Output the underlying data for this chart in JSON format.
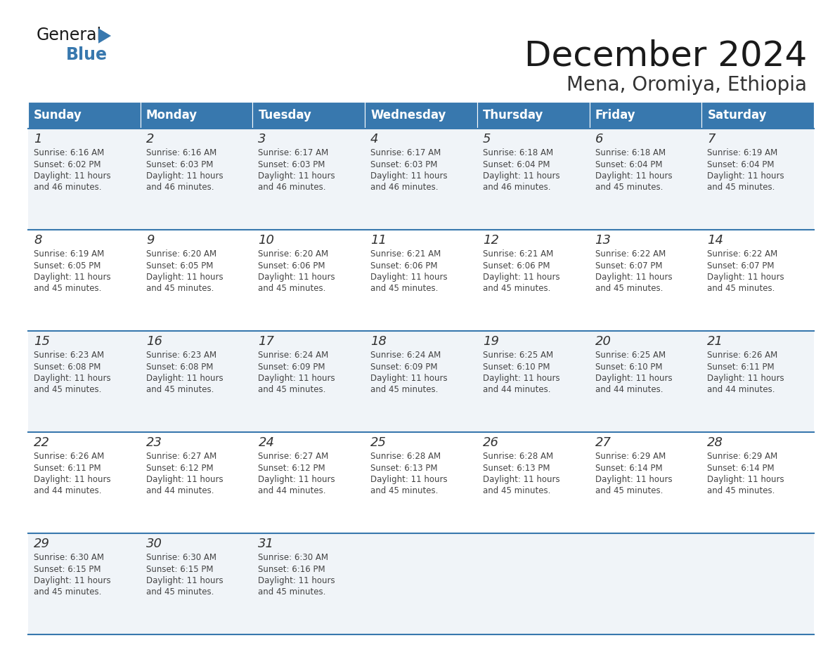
{
  "title": "December 2024",
  "subtitle": "Mena, Oromiya, Ethiopia",
  "header_color": "#3878ae",
  "header_text_color": "#FFFFFF",
  "day_names": [
    "Sunday",
    "Monday",
    "Tuesday",
    "Wednesday",
    "Thursday",
    "Friday",
    "Saturday"
  ],
  "bg_color": "#FFFFFF",
  "cell_bg_even": "#F0F4F8",
  "cell_bg_odd": "#FFFFFF",
  "row_line_color": "#3878ae",
  "days": [
    {
      "day": 1,
      "col": 0,
      "row": 0,
      "sunrise": "6:16 AM",
      "sunset": "6:02 PM",
      "daylight": "11 hours and 46 minutes."
    },
    {
      "day": 2,
      "col": 1,
      "row": 0,
      "sunrise": "6:16 AM",
      "sunset": "6:03 PM",
      "daylight": "11 hours and 46 minutes."
    },
    {
      "day": 3,
      "col": 2,
      "row": 0,
      "sunrise": "6:17 AM",
      "sunset": "6:03 PM",
      "daylight": "11 hours and 46 minutes."
    },
    {
      "day": 4,
      "col": 3,
      "row": 0,
      "sunrise": "6:17 AM",
      "sunset": "6:03 PM",
      "daylight": "11 hours and 46 minutes."
    },
    {
      "day": 5,
      "col": 4,
      "row": 0,
      "sunrise": "6:18 AM",
      "sunset": "6:04 PM",
      "daylight": "11 hours and 46 minutes."
    },
    {
      "day": 6,
      "col": 5,
      "row": 0,
      "sunrise": "6:18 AM",
      "sunset": "6:04 PM",
      "daylight": "11 hours and 45 minutes."
    },
    {
      "day": 7,
      "col": 6,
      "row": 0,
      "sunrise": "6:19 AM",
      "sunset": "6:04 PM",
      "daylight": "11 hours and 45 minutes."
    },
    {
      "day": 8,
      "col": 0,
      "row": 1,
      "sunrise": "6:19 AM",
      "sunset": "6:05 PM",
      "daylight": "11 hours and 45 minutes."
    },
    {
      "day": 9,
      "col": 1,
      "row": 1,
      "sunrise": "6:20 AM",
      "sunset": "6:05 PM",
      "daylight": "11 hours and 45 minutes."
    },
    {
      "day": 10,
      "col": 2,
      "row": 1,
      "sunrise": "6:20 AM",
      "sunset": "6:06 PM",
      "daylight": "11 hours and 45 minutes."
    },
    {
      "day": 11,
      "col": 3,
      "row": 1,
      "sunrise": "6:21 AM",
      "sunset": "6:06 PM",
      "daylight": "11 hours and 45 minutes."
    },
    {
      "day": 12,
      "col": 4,
      "row": 1,
      "sunrise": "6:21 AM",
      "sunset": "6:06 PM",
      "daylight": "11 hours and 45 minutes."
    },
    {
      "day": 13,
      "col": 5,
      "row": 1,
      "sunrise": "6:22 AM",
      "sunset": "6:07 PM",
      "daylight": "11 hours and 45 minutes."
    },
    {
      "day": 14,
      "col": 6,
      "row": 1,
      "sunrise": "6:22 AM",
      "sunset": "6:07 PM",
      "daylight": "11 hours and 45 minutes."
    },
    {
      "day": 15,
      "col": 0,
      "row": 2,
      "sunrise": "6:23 AM",
      "sunset": "6:08 PM",
      "daylight": "11 hours and 45 minutes."
    },
    {
      "day": 16,
      "col": 1,
      "row": 2,
      "sunrise": "6:23 AM",
      "sunset": "6:08 PM",
      "daylight": "11 hours and 45 minutes."
    },
    {
      "day": 17,
      "col": 2,
      "row": 2,
      "sunrise": "6:24 AM",
      "sunset": "6:09 PM",
      "daylight": "11 hours and 45 minutes."
    },
    {
      "day": 18,
      "col": 3,
      "row": 2,
      "sunrise": "6:24 AM",
      "sunset": "6:09 PM",
      "daylight": "11 hours and 45 minutes."
    },
    {
      "day": 19,
      "col": 4,
      "row": 2,
      "sunrise": "6:25 AM",
      "sunset": "6:10 PM",
      "daylight": "11 hours and 44 minutes."
    },
    {
      "day": 20,
      "col": 5,
      "row": 2,
      "sunrise": "6:25 AM",
      "sunset": "6:10 PM",
      "daylight": "11 hours and 44 minutes."
    },
    {
      "day": 21,
      "col": 6,
      "row": 2,
      "sunrise": "6:26 AM",
      "sunset": "6:11 PM",
      "daylight": "11 hours and 44 minutes."
    },
    {
      "day": 22,
      "col": 0,
      "row": 3,
      "sunrise": "6:26 AM",
      "sunset": "6:11 PM",
      "daylight": "11 hours and 44 minutes."
    },
    {
      "day": 23,
      "col": 1,
      "row": 3,
      "sunrise": "6:27 AM",
      "sunset": "6:12 PM",
      "daylight": "11 hours and 44 minutes."
    },
    {
      "day": 24,
      "col": 2,
      "row": 3,
      "sunrise": "6:27 AM",
      "sunset": "6:12 PM",
      "daylight": "11 hours and 44 minutes."
    },
    {
      "day": 25,
      "col": 3,
      "row": 3,
      "sunrise": "6:28 AM",
      "sunset": "6:13 PM",
      "daylight": "11 hours and 45 minutes."
    },
    {
      "day": 26,
      "col": 4,
      "row": 3,
      "sunrise": "6:28 AM",
      "sunset": "6:13 PM",
      "daylight": "11 hours and 45 minutes."
    },
    {
      "day": 27,
      "col": 5,
      "row": 3,
      "sunrise": "6:29 AM",
      "sunset": "6:14 PM",
      "daylight": "11 hours and 45 minutes."
    },
    {
      "day": 28,
      "col": 6,
      "row": 3,
      "sunrise": "6:29 AM",
      "sunset": "6:14 PM",
      "daylight": "11 hours and 45 minutes."
    },
    {
      "day": 29,
      "col": 0,
      "row": 4,
      "sunrise": "6:30 AM",
      "sunset": "6:15 PM",
      "daylight": "11 hours and 45 minutes."
    },
    {
      "day": 30,
      "col": 1,
      "row": 4,
      "sunrise": "6:30 AM",
      "sunset": "6:15 PM",
      "daylight": "11 hours and 45 minutes."
    },
    {
      "day": 31,
      "col": 2,
      "row": 4,
      "sunrise": "6:30 AM",
      "sunset": "6:16 PM",
      "daylight": "11 hours and 45 minutes."
    }
  ],
  "logo_text_general": "General",
  "logo_text_blue": "Blue",
  "logo_color_general": "#1A1A1A",
  "logo_color_blue": "#3878ae",
  "logo_triangle_color": "#3878ae",
  "title_fontsize": 36,
  "subtitle_fontsize": 20,
  "header_fontsize": 12,
  "day_num_fontsize": 13,
  "cell_text_fontsize": 8.5
}
